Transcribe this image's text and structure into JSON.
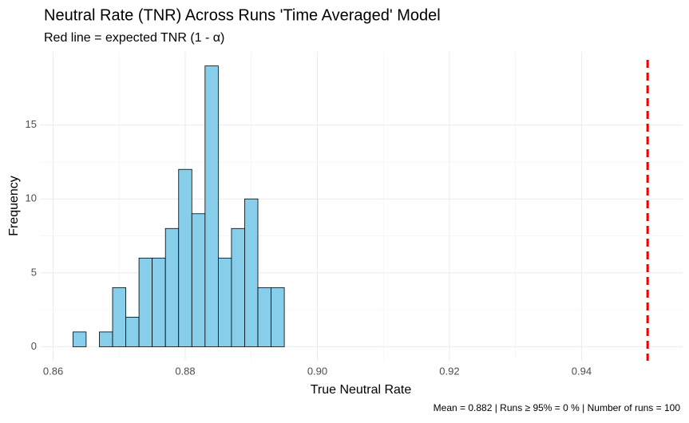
{
  "chart_data": {
    "type": "histogram",
    "title": "Neutral Rate (TNR) Across Runs 'Time Averaged' Model",
    "subtitle": "Red line = expected TNR (1 - α)",
    "x_label": "True Neutral Rate",
    "y_label": "Frequency",
    "caption": "Mean = 0.882 | Runs ≥ 95% = 0 % | Number of runs = 100",
    "bins": [
      0.863,
      0.865,
      0.867,
      0.869,
      0.871,
      0.873,
      0.875,
      0.877,
      0.879,
      0.881,
      0.883,
      0.885,
      0.887,
      0.889,
      0.891,
      0.893,
      0.895,
      0.897,
      0.899,
      0.901,
      0.903,
      0.905,
      0.907,
      0.909,
      0.911,
      0.913,
      0.915,
      0.917,
      0.919,
      0.921,
      0.923,
      0.925,
      0.927,
      0.929,
      0.931,
      0.933,
      0.935,
      0.937,
      0.939,
      0.941,
      0.943,
      0.945,
      0.947,
      0.949,
      0.951
    ],
    "values": [
      1,
      0,
      1,
      4,
      2,
      6,
      6,
      8,
      12,
      9,
      19,
      6,
      8,
      10,
      4,
      4,
      0,
      0,
      0,
      0,
      0,
      0,
      0,
      0,
      0,
      0,
      0,
      0,
      0,
      0,
      0,
      0,
      0,
      0,
      0,
      0,
      0,
      0,
      0,
      0,
      0,
      0,
      0,
      0
    ],
    "color": "#87ceeb",
    "edge_color": "#000000",
    "reference_line": {
      "value": 0.95,
      "color": "#e60000"
    },
    "xlim": [
      0.858,
      0.9553
    ],
    "ylim": [
      -0.95,
      19.95
    ],
    "xticks": [
      0.86,
      0.88,
      {
        "value": 0.9,
        "label": "0.90"
      },
      0.92,
      0.94
    ],
    "yticks": [
      0,
      5,
      10,
      15
    ],
    "grid": true
  }
}
